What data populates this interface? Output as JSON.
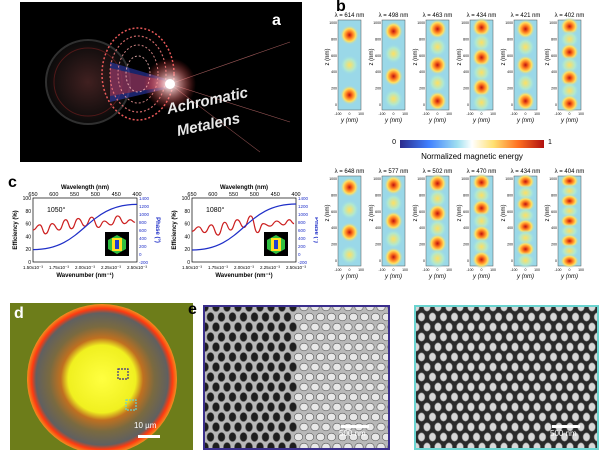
{
  "panel_a": {
    "letter": "a",
    "text_line1": "Achromatic",
    "text_line2": "Metalens"
  },
  "panel_b": {
    "letter": "b",
    "top_row_wavelengths": [
      "λ = 614 nm",
      "λ = 498 nm",
      "λ = 463 nm",
      "λ = 434 nm",
      "λ = 421 nm",
      "λ = 402 nm"
    ],
    "bottom_row_wavelengths": [
      "λ = 648 nm",
      "λ = 577 nm",
      "λ = 502 nm",
      "λ = 470 nm",
      "λ = 434 nm",
      "λ = 404 nm"
    ],
    "z_axis_label": "z (nm)",
    "y_axis_label": "y (nm)",
    "z_ticks": [
      "1000",
      "800",
      "600",
      "400",
      "200",
      "0"
    ],
    "y_ticks": [
      "-100",
      "0",
      "100"
    ],
    "colorbar_min": "0",
    "colorbar_max": "1",
    "colorbar_label": "Normalized magnetic energy"
  },
  "panel_c": {
    "letter": "c",
    "chart_data": [
      {
        "type": "line",
        "annotation": "1050°",
        "top_axis_label": "Wavelength (nm)",
        "top_ticks": [
          "650",
          "600",
          "550",
          "500",
          "450",
          "400"
        ],
        "xlabel": "Wavenumber (nm⁻¹)",
        "x_ticks": [
          "1.50x10⁻³",
          "1.75x10⁻³",
          "2.00x10⁻³",
          "2.25x10⁻³",
          "2.50x10⁻³"
        ],
        "xlim": [
          0.0015,
          0.00258
        ],
        "ylabel_left": "Efficiency (%)",
        "y_left_ticks": [
          "100",
          "80",
          "60",
          "40",
          "20",
          "0"
        ],
        "ylim_left": [
          0,
          100
        ],
        "ylabel_right": "Phase (°)",
        "y_right_ticks": [
          "1400",
          "1200",
          "1000",
          "800",
          "600",
          "400",
          "200",
          "0",
          "-200"
        ],
        "ylim_right": [
          -200,
          1400
        ],
        "series": [
          {
            "name": "Efficiency",
            "axis": "left",
            "color": "#cc1f1f",
            "x": [
              0.0015,
              0.00157,
              0.00163,
              0.0017,
              0.00177,
              0.00184,
              0.0019,
              0.00197,
              0.00204,
              0.00211,
              0.00218,
              0.00224,
              0.00231,
              0.00238,
              0.00245,
              0.00251,
              0.00256
            ],
            "values": [
              50,
              58,
              44,
              60,
              50,
              66,
              52,
              68,
              56,
              70,
              54,
              64,
              58,
              72,
              60,
              66,
              62
            ]
          },
          {
            "name": "Phase",
            "axis": "right",
            "color": "#1f2fc8",
            "x": [
              0.0015,
              0.00258
            ],
            "values": [
              110,
              1240
            ]
          }
        ]
      },
      {
        "type": "line",
        "annotation": "1080°",
        "top_axis_label": "Wavelength (nm)",
        "top_ticks": [
          "650",
          "600",
          "550",
          "500",
          "450",
          "400"
        ],
        "xlabel": "Wavenumber (nm⁻¹)",
        "x_ticks": [
          "1.50x10⁻³",
          "1.75x10⁻³",
          "2.00x10⁻³",
          "2.25x10⁻³",
          "2.50x10⁻³"
        ],
        "xlim": [
          0.0015,
          0.00258
        ],
        "ylabel_left": "Efficiency (%)",
        "y_left_ticks": [
          "100",
          "80",
          "60",
          "40",
          "20",
          "0"
        ],
        "ylim_left": [
          0,
          100
        ],
        "ylabel_right": "Phase (°)",
        "y_right_ticks": [
          "1400",
          "1200",
          "1000",
          "800",
          "600",
          "400",
          "200",
          "0",
          "-200"
        ],
        "ylim_right": [
          -200,
          1400
        ],
        "series": [
          {
            "name": "Efficiency",
            "axis": "left",
            "color": "#cc1f1f",
            "x": [
              0.0015,
              0.00157,
              0.00163,
              0.0017,
              0.00177,
              0.00184,
              0.0019,
              0.00197,
              0.00204,
              0.00211,
              0.00218,
              0.00224,
              0.00231,
              0.00238,
              0.00245,
              0.00251,
              0.00256
            ],
            "values": [
              48,
              55,
              46,
              58,
              42,
              62,
              50,
              66,
              54,
              72,
              46,
              60,
              56,
              64,
              58,
              66,
              60
            ]
          },
          {
            "name": "Phase",
            "axis": "right",
            "color": "#1f2fc8",
            "x": [
              0.0015,
              0.00258
            ],
            "values": [
              100,
              1250
            ]
          }
        ]
      }
    ]
  },
  "panel_d": {
    "letter": "d",
    "scale_bar": "10 µm"
  },
  "panel_e": {
    "letter": "e",
    "scale_bar_left": "500 nm",
    "scale_bar_right": "500 nm"
  }
}
